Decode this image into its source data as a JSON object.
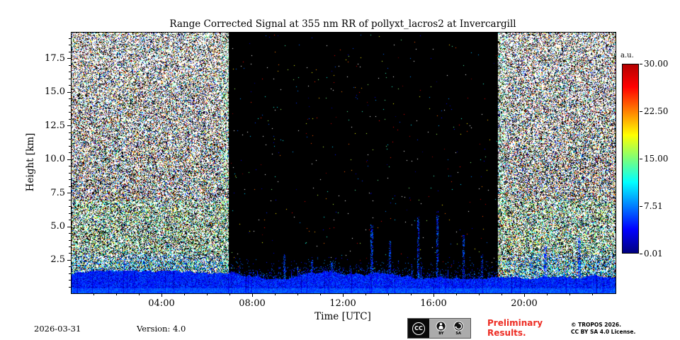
{
  "colors": {
    "preliminary_text": "#ed2d24",
    "axis": "#000000"
  },
  "figure": {
    "title": "Range Corrected Signal at 355 nm RR of pollyxt_lacros2 at Invercargill",
    "footer": {
      "date": "2026-03-31",
      "version": "Version: 4.0",
      "preliminary_line1": "Preliminary",
      "preliminary_line2": "Results.",
      "copyright_line1": "© TROPOS 2026.",
      "copyright_line2": "CC BY SA 4.0 License.",
      "badge": {
        "cc": "CC",
        "by": "BY",
        "sa": "SA"
      }
    }
  },
  "chart_data": {
    "type": "heatmap",
    "title": "Range Corrected Signal at 355 nm RR of pollyxt_lacros2 at Invercargill",
    "xlabel": "Time [UTC]",
    "ylabel": "Height [km]",
    "x_range_hours": [
      0,
      24
    ],
    "y_range_km": [
      0.1,
      19.5
    ],
    "x_major_ticks": [
      {
        "hour": 4,
        "label": "04:00"
      },
      {
        "hour": 8,
        "label": "08:00"
      },
      {
        "hour": 12,
        "label": "12:00"
      },
      {
        "hour": 16,
        "label": "16:00"
      },
      {
        "hour": 20,
        "label": "20:00"
      }
    ],
    "x_minor_tick_step_hours": 1,
    "y_major_ticks": [
      {
        "km": 2.5,
        "label": "2.5"
      },
      {
        "km": 5.0,
        "label": "5.0"
      },
      {
        "km": 7.5,
        "label": "7.5"
      },
      {
        "km": 10.0,
        "label": "10.0"
      },
      {
        "km": 12.5,
        "label": "12.5"
      },
      {
        "km": 15.0,
        "label": "15.0"
      },
      {
        "km": 17.5,
        "label": "17.5"
      }
    ],
    "y_minor_tick_step_km": 0.5,
    "colorbar": {
      "label": "a.u.",
      "colormap": "jet",
      "vmin": 0.01,
      "vmax": 30.0,
      "ticks": [
        "30.00",
        "22.50",
        "15.00",
        "7.51",
        "0.01"
      ]
    },
    "content": {
      "description": "Lidar quicklook heatmap: dense multicolour background-noise speckle during daylight hours, near-black low-noise background at night, strong blue near-range/boundary-layer signal band below ~1.5 km across the whole day, sparse vertical blue streaks in the afternoon.",
      "daylight_noise_intervals_utc": [
        [
          0.0,
          6.95
        ],
        [
          18.8,
          24.0
        ]
      ],
      "night_interval_utc": [
        6.95,
        18.8
      ],
      "signal_band_top_km": 1.5,
      "night_streaks_utc_topkm": [
        [
          9.4,
          3.0
        ],
        [
          10.6,
          2.6
        ],
        [
          11.5,
          2.4
        ],
        [
          13.25,
          5.2
        ],
        [
          14.05,
          4.0
        ],
        [
          15.3,
          5.8
        ],
        [
          16.15,
          6.2
        ],
        [
          17.3,
          4.4
        ],
        [
          18.1,
          3.0
        ]
      ],
      "day_streaks_utc_topkm": [
        [
          20.9,
          3.6
        ],
        [
          22.4,
          4.2
        ]
      ]
    }
  }
}
